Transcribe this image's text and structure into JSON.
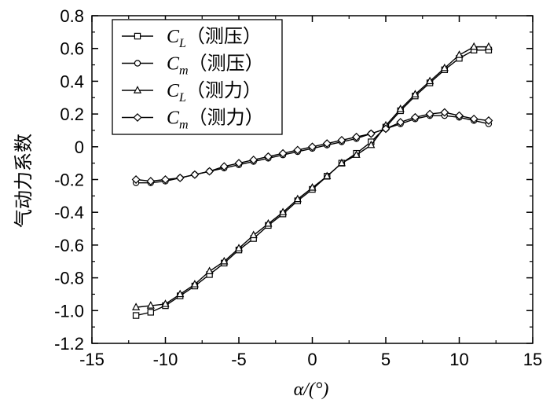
{
  "chart_data": {
    "type": "line",
    "title": "",
    "xlabel": "α/(°)",
    "ylabel": "气动力系数",
    "xlim": [
      -15,
      15
    ],
    "ylim": [
      -1.2,
      0.8
    ],
    "xticks": [
      -15,
      -10,
      -5,
      0,
      5,
      10,
      15
    ],
    "xtick_labels": [
      "-15",
      "-10",
      "-5",
      "0",
      "5",
      "10",
      "15"
    ],
    "yticks": [
      0.8,
      0.6,
      0.4,
      0.2,
      0,
      -0.2,
      -0.4,
      -0.6,
      -0.8,
      -1.0,
      -1.2
    ],
    "ytick_labels": [
      "0.8",
      "0.6",
      "0.4",
      "0.2",
      "0",
      "-0.2",
      "-0.4",
      "-0.6",
      "-0.8",
      "-1.0",
      "-1.2"
    ],
    "grid": false,
    "legend_position": "top-left",
    "x": [
      -12,
      -11,
      -10,
      -9,
      -8,
      -7,
      -6,
      -5,
      -4,
      -3,
      -2,
      -1,
      0,
      1,
      2,
      3,
      4,
      5,
      6,
      7,
      8,
      9,
      10,
      11,
      12
    ],
    "series": [
      {
        "name": "CL（测压）",
        "symbol": "C",
        "subscript": "L",
        "suffix": "（测压）",
        "marker": "square",
        "values": [
          -1.03,
          -1.01,
          -0.97,
          -0.91,
          -0.85,
          -0.78,
          -0.71,
          -0.63,
          -0.56,
          -0.48,
          -0.41,
          -0.33,
          -0.26,
          -0.18,
          -0.1,
          -0.04,
          0.03,
          0.12,
          0.22,
          0.31,
          0.39,
          0.47,
          0.54,
          0.59,
          0.59
        ]
      },
      {
        "name": "Cm（测压）",
        "symbol": "C",
        "subscript": "m",
        "suffix": "（测压）",
        "marker": "circle",
        "values": [
          -0.22,
          -0.22,
          -0.21,
          -0.19,
          -0.17,
          -0.15,
          -0.13,
          -0.11,
          -0.09,
          -0.07,
          -0.05,
          -0.03,
          -0.01,
          0.01,
          0.03,
          0.05,
          0.08,
          0.11,
          0.14,
          0.17,
          0.19,
          0.19,
          0.18,
          0.16,
          0.14
        ]
      },
      {
        "name": "CL（测力）",
        "symbol": "C",
        "subscript": "L",
        "suffix": "（测力）",
        "marker": "triangle",
        "values": [
          -0.98,
          -0.97,
          -0.96,
          -0.9,
          -0.84,
          -0.76,
          -0.7,
          -0.62,
          -0.54,
          -0.47,
          -0.4,
          -0.32,
          -0.25,
          -0.18,
          -0.1,
          -0.05,
          0.01,
          0.13,
          0.23,
          0.32,
          0.4,
          0.48,
          0.56,
          0.61,
          0.61
        ]
      },
      {
        "name": "Cm（测力）",
        "symbol": "C",
        "subscript": "m",
        "suffix": "（测力）",
        "marker": "diamond",
        "values": [
          -0.2,
          -0.21,
          -0.2,
          -0.19,
          -0.17,
          -0.15,
          -0.12,
          -0.1,
          -0.08,
          -0.06,
          -0.04,
          -0.02,
          0.0,
          0.02,
          0.04,
          0.06,
          0.08,
          0.11,
          0.15,
          0.18,
          0.2,
          0.21,
          0.19,
          0.17,
          0.16
        ]
      }
    ]
  }
}
